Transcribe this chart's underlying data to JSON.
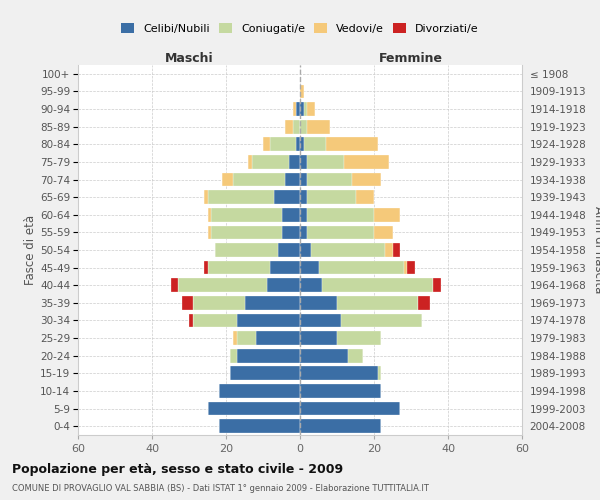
{
  "age_groups": [
    "0-4",
    "5-9",
    "10-14",
    "15-19",
    "20-24",
    "25-29",
    "30-34",
    "35-39",
    "40-44",
    "45-49",
    "50-54",
    "55-59",
    "60-64",
    "65-69",
    "70-74",
    "75-79",
    "80-84",
    "85-89",
    "90-94",
    "95-99",
    "100+"
  ],
  "birth_years": [
    "2004-2008",
    "1999-2003",
    "1994-1998",
    "1989-1993",
    "1984-1988",
    "1979-1983",
    "1974-1978",
    "1969-1973",
    "1964-1968",
    "1959-1963",
    "1954-1958",
    "1949-1953",
    "1944-1948",
    "1939-1943",
    "1934-1938",
    "1929-1933",
    "1924-1928",
    "1919-1923",
    "1914-1918",
    "1909-1913",
    "≤ 1908"
  ],
  "colors": {
    "celibi": "#3b6ea5",
    "coniugati": "#c5d9a0",
    "vedovi": "#f5c97a",
    "divorziati": "#cc2222"
  },
  "males": {
    "celibi": [
      22,
      25,
      22,
      19,
      17,
      12,
      17,
      15,
      9,
      8,
      6,
      5,
      5,
      7,
      4,
      3,
      1,
      0,
      1,
      0,
      0
    ],
    "coniugati": [
      0,
      0,
      0,
      0,
      2,
      5,
      12,
      14,
      24,
      17,
      17,
      19,
      19,
      18,
      14,
      10,
      7,
      2,
      0,
      0,
      0
    ],
    "vedovi": [
      0,
      0,
      0,
      0,
      0,
      1,
      0,
      0,
      0,
      0,
      0,
      1,
      1,
      1,
      3,
      1,
      2,
      2,
      1,
      0,
      0
    ],
    "divorziati": [
      0,
      0,
      0,
      0,
      0,
      0,
      1,
      3,
      2,
      1,
      0,
      0,
      0,
      0,
      0,
      0,
      0,
      0,
      0,
      0,
      0
    ]
  },
  "females": {
    "nubili": [
      22,
      27,
      22,
      21,
      13,
      10,
      11,
      10,
      6,
      5,
      3,
      2,
      2,
      2,
      2,
      2,
      1,
      0,
      1,
      0,
      0
    ],
    "coniugate": [
      0,
      0,
      0,
      1,
      4,
      12,
      22,
      22,
      30,
      23,
      20,
      18,
      18,
      13,
      12,
      10,
      6,
      2,
      1,
      0,
      0
    ],
    "vedove": [
      0,
      0,
      0,
      0,
      0,
      0,
      0,
      0,
      0,
      1,
      2,
      5,
      7,
      5,
      8,
      12,
      14,
      6,
      2,
      1,
      0
    ],
    "divorziate": [
      0,
      0,
      0,
      0,
      0,
      0,
      0,
      3,
      2,
      2,
      2,
      0,
      0,
      0,
      0,
      0,
      0,
      0,
      0,
      0,
      0
    ]
  },
  "title": "Popolazione per età, sesso e stato civile - 2009",
  "subtitle": "COMUNE DI PROVAGLIO VAL SABBIA (BS) - Dati ISTAT 1° gennaio 2009 - Elaborazione TUTTITALIA.IT",
  "xlabel_left": "Maschi",
  "xlabel_right": "Femmine",
  "ylabel_left": "Fasce di età",
  "ylabel_right": "Anni di nascita",
  "xlim": 60,
  "bg_color": "#f0f0f0",
  "plot_bg_color": "#ffffff",
  "grid_color": "#cccccc"
}
